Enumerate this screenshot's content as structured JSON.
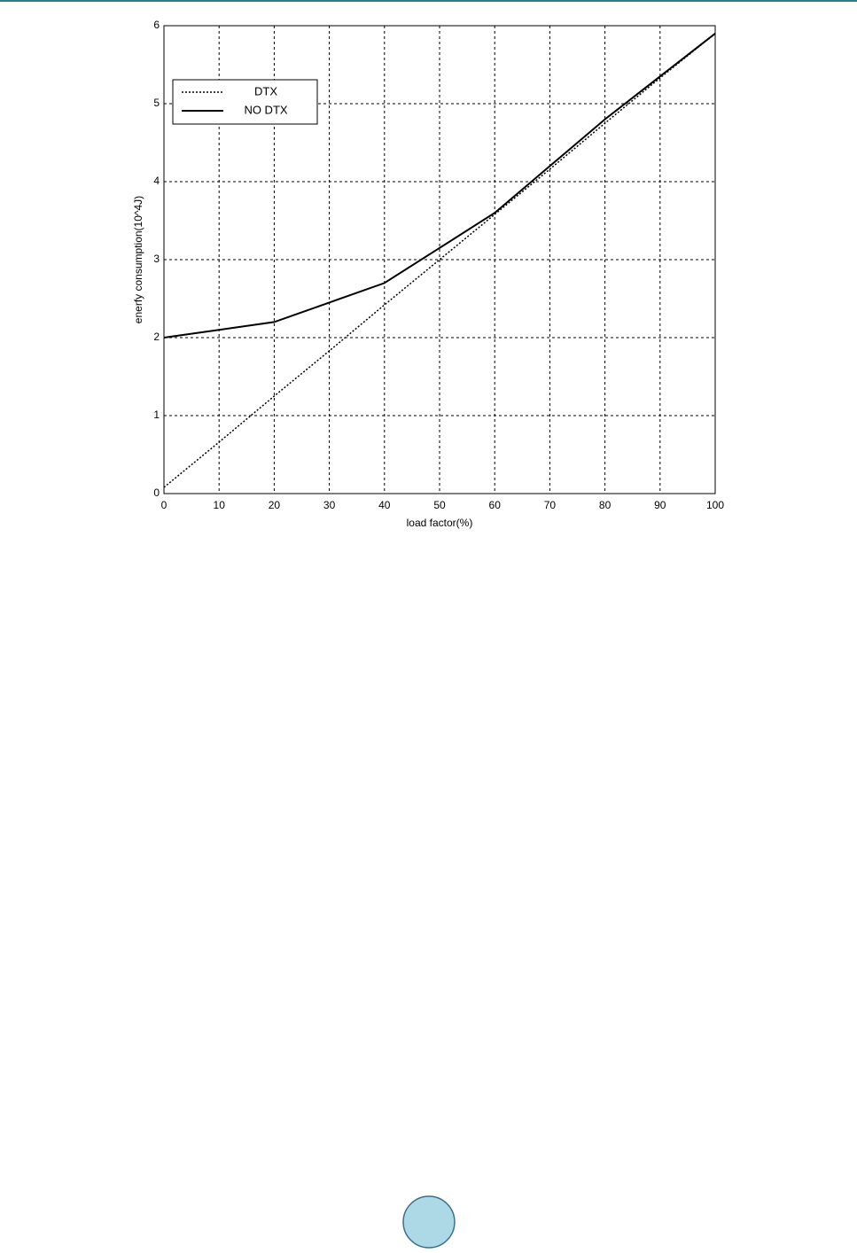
{
  "chart_data": {
    "type": "line",
    "x": [
      0,
      10,
      20,
      30,
      40,
      50,
      60,
      70,
      80,
      90,
      100
    ],
    "series": [
      {
        "name": "DTX",
        "color": "#000000",
        "style": "dotted",
        "values": [
          0.08,
          0.66,
          1.25,
          1.83,
          2.42,
          3.0,
          3.58,
          4.16,
          4.75,
          5.33,
          5.9
        ]
      },
      {
        "name": "NO DTX",
        "color": "#000000",
        "style": "solid",
        "values": [
          2.0,
          2.1,
          2.2,
          2.45,
          2.7,
          3.15,
          3.6,
          4.2,
          4.8,
          5.35,
          5.9
        ]
      }
    ],
    "xlabel": "load factor(%)",
    "ylabel": "enerfy consumption(10^4J)",
    "xlim": [
      0,
      100
    ],
    "xticks": [
      0,
      10,
      20,
      30,
      40,
      50,
      60,
      70,
      80,
      90,
      100
    ],
    "ylim": [
      0,
      6
    ],
    "yticks": [
      0,
      1,
      2,
      3,
      4,
      5,
      6
    ],
    "grid": true,
    "legend": "upper left"
  }
}
